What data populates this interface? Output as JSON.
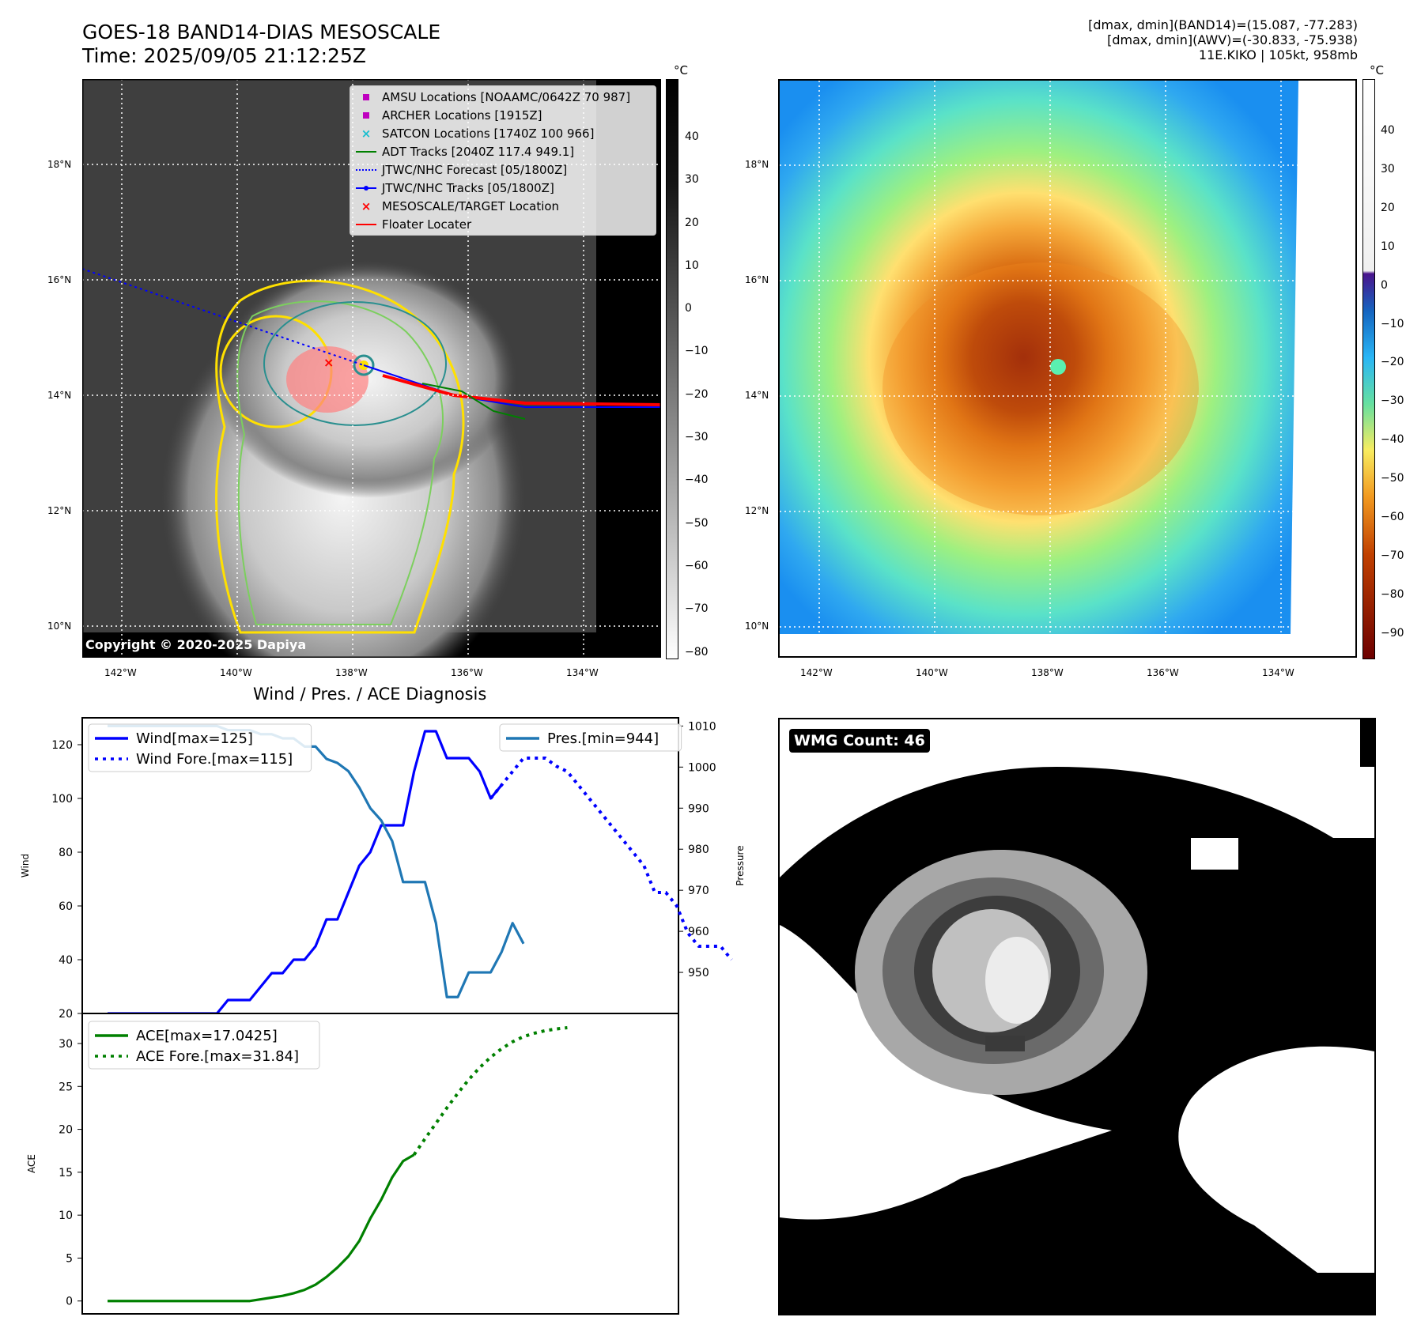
{
  "header": {
    "title_line1": "GOES-18 BAND14-DIAS MESOSCALE",
    "title_line2": "Time: 2025/09/05 21:12:25Z",
    "info_line1": "[dmax, dmin](BAND14)=(15.087, -77.283)",
    "info_line2": "[dmax, dmin](AWV)=(-30.833, -75.938)",
    "info_line3": "11E.KIKO | 105kt, 958mb"
  },
  "colors": {
    "wind": "#0000ff",
    "pressure": "#1f77b4",
    "ace": "#008000",
    "amsu": "#bf00bf",
    "archer": "#bf00bf",
    "satcon": "#17becf",
    "adt": "#008000",
    "forecast": "#0000ff",
    "tracks": "#0000ff",
    "target": "#ff0000",
    "floater": "#ff0000"
  },
  "map_panel": {
    "unit": "°C",
    "colorbar_ticks": [
      "40",
      "30",
      "20",
      "10",
      "0",
      "−10",
      "−20",
      "−30",
      "−40",
      "−50",
      "−60",
      "−70",
      "−80"
    ],
    "lat_labels": [
      "18°N",
      "16°N",
      "14°N",
      "12°N",
      "10°N"
    ],
    "lon_labels": [
      "142°W",
      "140°W",
      "138°W",
      "136°W",
      "134°W"
    ],
    "copyright": "Copyright © 2020-2025 Dapiya",
    "legend": [
      {
        "label": "AMSU Locations [NOAAMC/0642Z 70 987]",
        "icon": "square-marker-icon"
      },
      {
        "label": "ARCHER Locations [1915Z]",
        "icon": "square-marker-icon"
      },
      {
        "label": "SATCON Locations [1740Z 100 966]",
        "icon": "x-marker-icon"
      },
      {
        "label": "ADT Tracks [2040Z 117.4 949.1]",
        "icon": "line-icon"
      },
      {
        "label": "JTWC/NHC Forecast [05/1800Z]",
        "icon": "dotted-line-icon"
      },
      {
        "label": "JTWC/NHC Tracks [05/1800Z]",
        "icon": "line-dot-icon"
      },
      {
        "label": "MESOSCALE/TARGET Location",
        "icon": "x-marker-icon"
      },
      {
        "label": "Floater Locater",
        "icon": "line-icon"
      }
    ]
  },
  "awv_panel": {
    "unit": "°C",
    "colorbar_ticks": [
      "40",
      "30",
      "20",
      "10",
      "0",
      "−10",
      "−20",
      "−30",
      "−40",
      "−50",
      "−60",
      "−70",
      "−80",
      "−90"
    ],
    "lat_labels": [
      "18°N",
      "16°N",
      "14°N",
      "12°N",
      "10°N"
    ],
    "lon_labels": [
      "142°W",
      "140°W",
      "138°W",
      "136°W",
      "134°W"
    ]
  },
  "wmg_panel": {
    "badge": "WMG Count: 46"
  },
  "chart_data": [
    {
      "type": "line",
      "title": "Wind / Pres. / ACE Diagnosis",
      "xlabel": "",
      "ylabel": "Wind",
      "ylabel_right": "Pressure",
      "ylim": [
        20,
        130
      ],
      "ylim_right": [
        940,
        1012
      ],
      "y_ticks": [
        20,
        40,
        60,
        80,
        100,
        120
      ],
      "y_ticks_right": [
        950,
        960,
        970,
        980,
        990,
        1000,
        1010
      ],
      "legend_left": [
        "Wind[max=125]",
        "Wind Fore.[max=115]"
      ],
      "legend_right": [
        "Pres.[min=944]"
      ],
      "x_count": 52,
      "series": [
        {
          "name": "Wind",
          "style": "solid",
          "x_start": 0,
          "values": [
            20,
            20,
            20,
            20,
            20,
            20,
            20,
            20,
            20,
            20,
            20,
            25,
            25,
            25,
            30,
            35,
            35,
            40,
            40,
            45,
            55,
            55,
            65,
            75,
            80,
            90,
            90,
            90,
            110,
            125,
            125,
            115,
            115,
            115,
            110,
            100,
            105
          ]
        },
        {
          "name": "Wind Fore.",
          "style": "dotted",
          "x_start": 35,
          "values": [
            100,
            105,
            110,
            115,
            115,
            115,
            112,
            110,
            105,
            100,
            95,
            90,
            85,
            80,
            75,
            65,
            65,
            60,
            50,
            45,
            45,
            45,
            40
          ]
        },
        {
          "name": "Pres.",
          "style": "solid",
          "x_start": 0,
          "values": [
            1010,
            1010,
            1010,
            1010,
            1010,
            1010,
            1010,
            1010,
            1010,
            1010,
            1010,
            1009,
            1009,
            1009,
            1008,
            1008,
            1007,
            1007,
            1005,
            1005,
            1002,
            1001,
            999,
            995,
            990,
            987,
            982,
            972,
            972,
            972,
            962,
            944,
            944,
            950,
            950,
            950,
            955,
            962,
            957
          ]
        }
      ]
    },
    {
      "type": "line",
      "title": "",
      "xlabel": "",
      "ylabel": "ACE",
      "ylim": [
        -1.5,
        33.5
      ],
      "y_ticks": [
        0,
        5,
        10,
        15,
        20,
        25,
        30
      ],
      "legend": [
        "ACE[max=17.0425]",
        "ACE Fore.[max=31.84]"
      ],
      "x_count": 52,
      "series": [
        {
          "name": "ACE",
          "style": "solid",
          "x_start": 0,
          "values": [
            0,
            0,
            0,
            0,
            0,
            0,
            0,
            0,
            0,
            0,
            0,
            0,
            0,
            0,
            0.2,
            0.4,
            0.6,
            0.9,
            1.3,
            1.9,
            2.8,
            3.9,
            5.2,
            7.0,
            9.6,
            11.8,
            14.4,
            16.3,
            17.04
          ]
        },
        {
          "name": "ACE Fore.",
          "style": "dotted",
          "x_start": 28,
          "values": [
            17.04,
            18.9,
            20.7,
            22.5,
            24.2,
            25.8,
            27.2,
            28.4,
            29.4,
            30.2,
            30.8,
            31.2,
            31.5,
            31.7,
            31.84
          ]
        }
      ]
    }
  ]
}
